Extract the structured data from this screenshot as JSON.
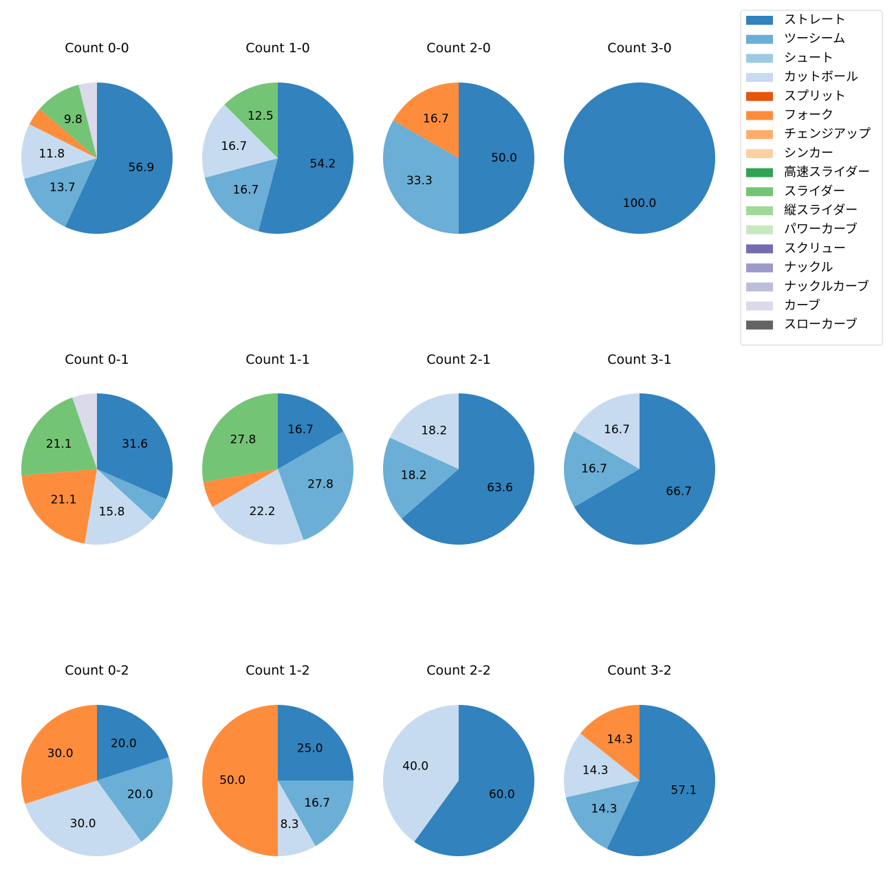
{
  "chart_data": {
    "type": "pie",
    "legend": {
      "placement": "top-right",
      "entries": [
        {
          "name": "ストレート",
          "color": "#3182bd"
        },
        {
          "name": "ツーシーム",
          "color": "#6baed6"
        },
        {
          "name": "シュート",
          "color": "#9ecae1"
        },
        {
          "name": "カットボール",
          "color": "#c6dbef"
        },
        {
          "name": "スプリット",
          "color": "#e6550d"
        },
        {
          "name": "フォーク",
          "color": "#fd8d3c"
        },
        {
          "name": "チェンジアップ",
          "color": "#fdae6b"
        },
        {
          "name": "シンカー",
          "color": "#fdd0a2"
        },
        {
          "name": "高速スライダー",
          "color": "#31a354"
        },
        {
          "name": "スライダー",
          "color": "#74c476"
        },
        {
          "name": "縦スライダー",
          "color": "#a1d99b"
        },
        {
          "name": "パワーカーブ",
          "color": "#c7e9c0"
        },
        {
          "name": "スクリュー",
          "color": "#756bb1"
        },
        {
          "name": "ナックル",
          "color": "#9e9ac8"
        },
        {
          "name": "ナックルカーブ",
          "color": "#bcbddc"
        },
        {
          "name": "カーブ",
          "color": "#dadaeb"
        },
        {
          "name": "スローカーブ",
          "color": "#636363"
        }
      ]
    },
    "panels": [
      {
        "title": "Count 0-0",
        "slices": [
          {
            "pitch": "ストレート",
            "value": 56.9,
            "label": "56.9"
          },
          {
            "pitch": "ツーシーム",
            "value": 13.7,
            "label": "13.7"
          },
          {
            "pitch": "カットボール",
            "value": 11.8,
            "label": "11.8"
          },
          {
            "pitch": "フォーク",
            "value": 3.9,
            "label": ""
          },
          {
            "pitch": "スライダー",
            "value": 9.8,
            "label": "9.8"
          },
          {
            "pitch": "カーブ",
            "value": 3.9,
            "label": ""
          }
        ]
      },
      {
        "title": "Count 1-0",
        "slices": [
          {
            "pitch": "ストレート",
            "value": 54.2,
            "label": "54.2"
          },
          {
            "pitch": "ツーシーム",
            "value": 16.7,
            "label": "16.7"
          },
          {
            "pitch": "カットボール",
            "value": 16.7,
            "label": "16.7"
          },
          {
            "pitch": "スライダー",
            "value": 12.5,
            "label": "12.5"
          }
        ]
      },
      {
        "title": "Count 2-0",
        "slices": [
          {
            "pitch": "ストレート",
            "value": 50.0,
            "label": "50.0"
          },
          {
            "pitch": "ツーシーム",
            "value": 33.3,
            "label": "33.3"
          },
          {
            "pitch": "フォーク",
            "value": 16.7,
            "label": "16.7"
          }
        ]
      },
      {
        "title": "Count 3-0",
        "slices": [
          {
            "pitch": "ストレート",
            "value": 100.0,
            "label": "100.0"
          }
        ]
      },
      {
        "title": "Count 0-1",
        "slices": [
          {
            "pitch": "ストレート",
            "value": 31.6,
            "label": "31.6"
          },
          {
            "pitch": "ツーシーム",
            "value": 5.3,
            "label": ""
          },
          {
            "pitch": "カットボール",
            "value": 15.8,
            "label": "15.8"
          },
          {
            "pitch": "フォーク",
            "value": 21.1,
            "label": "21.1"
          },
          {
            "pitch": "スライダー",
            "value": 21.1,
            "label": "21.1"
          },
          {
            "pitch": "カーブ",
            "value": 5.3,
            "label": ""
          }
        ]
      },
      {
        "title": "Count 1-1",
        "slices": [
          {
            "pitch": "ストレート",
            "value": 16.7,
            "label": "16.7"
          },
          {
            "pitch": "ツーシーム",
            "value": 27.8,
            "label": "27.8"
          },
          {
            "pitch": "カットボール",
            "value": 22.2,
            "label": "22.2"
          },
          {
            "pitch": "フォーク",
            "value": 5.6,
            "label": ""
          },
          {
            "pitch": "スライダー",
            "value": 27.8,
            "label": "27.8"
          }
        ]
      },
      {
        "title": "Count 2-1",
        "slices": [
          {
            "pitch": "ストレート",
            "value": 63.6,
            "label": "63.6"
          },
          {
            "pitch": "ツーシーム",
            "value": 18.2,
            "label": "18.2"
          },
          {
            "pitch": "カットボール",
            "value": 18.2,
            "label": "18.2"
          }
        ]
      },
      {
        "title": "Count 3-1",
        "slices": [
          {
            "pitch": "ストレート",
            "value": 66.7,
            "label": "66.7"
          },
          {
            "pitch": "ツーシーム",
            "value": 16.7,
            "label": "16.7"
          },
          {
            "pitch": "カットボール",
            "value": 16.7,
            "label": "16.7"
          }
        ]
      },
      {
        "title": "Count 0-2",
        "slices": [
          {
            "pitch": "ストレート",
            "value": 20.0,
            "label": "20.0"
          },
          {
            "pitch": "ツーシーム",
            "value": 20.0,
            "label": "20.0"
          },
          {
            "pitch": "カットボール",
            "value": 30.0,
            "label": "30.0"
          },
          {
            "pitch": "フォーク",
            "value": 30.0,
            "label": "30.0"
          }
        ]
      },
      {
        "title": "Count 1-2",
        "slices": [
          {
            "pitch": "ストレート",
            "value": 25.0,
            "label": "25.0"
          },
          {
            "pitch": "ツーシーム",
            "value": 16.7,
            "label": "16.7"
          },
          {
            "pitch": "カットボール",
            "value": 8.3,
            "label": "8.3"
          },
          {
            "pitch": "フォーク",
            "value": 50.0,
            "label": "50.0"
          }
        ]
      },
      {
        "title": "Count 2-2",
        "slices": [
          {
            "pitch": "ストレート",
            "value": 60.0,
            "label": "60.0"
          },
          {
            "pitch": "カットボール",
            "value": 40.0,
            "label": "40.0"
          }
        ]
      },
      {
        "title": "Count 3-2",
        "slices": [
          {
            "pitch": "ストレート",
            "value": 57.1,
            "label": "57.1"
          },
          {
            "pitch": "ツーシーム",
            "value": 14.3,
            "label": "14.3"
          },
          {
            "pitch": "カットボール",
            "value": 14.3,
            "label": "14.3"
          },
          {
            "pitch": "フォーク",
            "value": 14.3,
            "label": "14.3"
          }
        ]
      }
    ]
  }
}
